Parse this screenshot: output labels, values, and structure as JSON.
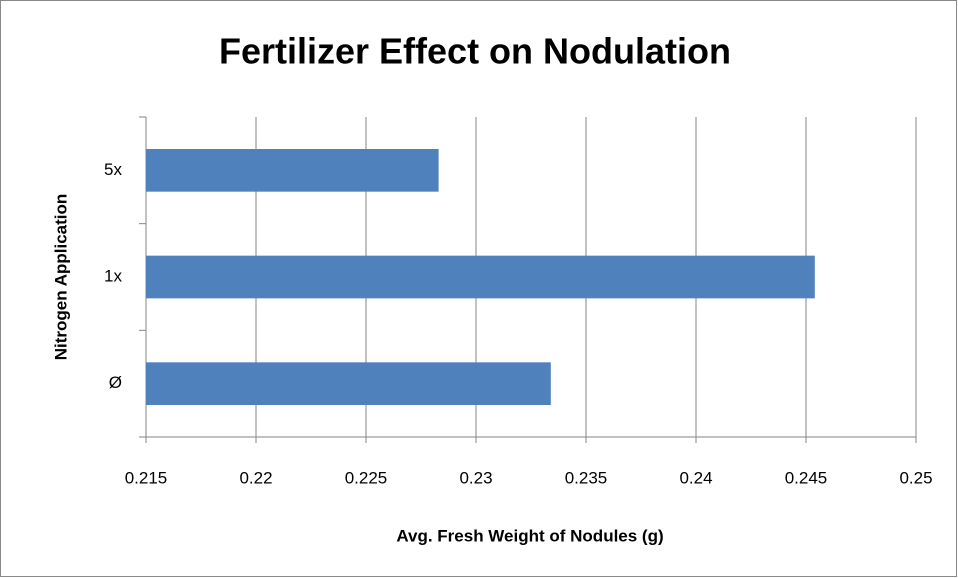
{
  "chart_data": {
    "type": "hbar",
    "title": "Fertilizer Effect on Nodulation",
    "xlabel": "Avg. Fresh Weight of Nodules (g)",
    "ylabel": "Nitrogen Application",
    "categories": [
      "Ø",
      "1x",
      "5x"
    ],
    "values": [
      0.2334,
      0.2454,
      0.2283
    ],
    "color": "#4f81bd",
    "xlim": [
      0.215,
      0.25
    ],
    "xticks": [
      0.215,
      0.22,
      0.225,
      0.23,
      0.235,
      0.24,
      0.245,
      0.25
    ],
    "grid": true
  }
}
